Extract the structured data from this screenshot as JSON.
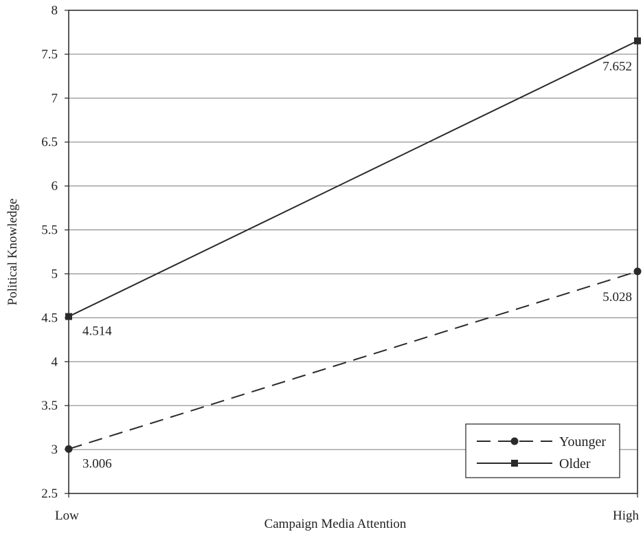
{
  "chart_data": {
    "type": "line",
    "title": "",
    "xlabel": "Campaign Media Attention",
    "ylabel": "Political Knowledge",
    "categories": [
      "Low",
      "High"
    ],
    "ylim": [
      2.5,
      8
    ],
    "yticks": [
      2.5,
      3,
      3.5,
      4,
      4.5,
      5,
      5.5,
      6,
      6.5,
      7,
      7.5,
      8
    ],
    "grid": true,
    "legend_position": "bottom-right",
    "series": [
      {
        "name": "Younger",
        "values": [
          3.006,
          5.028
        ],
        "labels": [
          "3.006",
          "5.028"
        ],
        "style": "dashed",
        "marker": "circle",
        "color": "#2a2a2a"
      },
      {
        "name": "Older",
        "values": [
          4.514,
          7.652
        ],
        "labels": [
          "4.514",
          "7.652"
        ],
        "style": "solid",
        "marker": "square",
        "color": "#2a2a2a"
      }
    ]
  }
}
